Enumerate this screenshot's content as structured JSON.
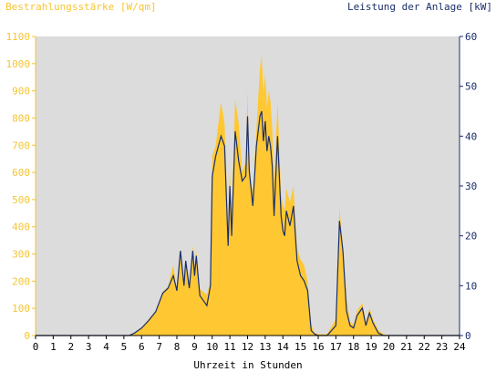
{
  "chart_data": {
    "type": "area",
    "title_left": "Bestrahlungsstärke [W/qm]",
    "title_right": "Leistung der Anlage [kW]",
    "xlabel": "Uhrzeit in Stunden",
    "x_ticks": [
      "0",
      "1",
      "2",
      "3",
      "4",
      "5",
      "6",
      "7",
      "8",
      "9",
      "10",
      "11",
      "12",
      "13",
      "14",
      "15",
      "16",
      "17",
      "18",
      "19",
      "20",
      "21",
      "22",
      "23",
      "24"
    ],
    "xlim": [
      0,
      24
    ],
    "y_left": {
      "ylim": [
        0,
        1100
      ],
      "ticks": [
        "0",
        "100",
        "200",
        "300",
        "400",
        "500",
        "600",
        "700",
        "800",
        "900",
        "1000",
        "1100"
      ]
    },
    "y_right": {
      "ylim": [
        0,
        60
      ],
      "ticks": [
        "0",
        "10",
        "20",
        "30",
        "40",
        "50",
        "60"
      ]
    },
    "grid": false,
    "colors": {
      "irradiance_fill": "#ffc832",
      "power_line": "#1a2e6b",
      "plot_bg": "#dcdcdc",
      "left_axis_text": "#f5c531",
      "right_axis_text": "#1a2e6b"
    },
    "series": [
      {
        "axis": "left",
        "style": "filled-area",
        "x": [
          0,
          5.3,
          5.6,
          6,
          6.4,
          6.8,
          7.2,
          7.5,
          7.8,
          8,
          8.2,
          8.4,
          8.5,
          8.7,
          8.9,
          9.0,
          9.1,
          9.3,
          9.5,
          9.7,
          9.9,
          10.0,
          10.2,
          10.5,
          10.7,
          10.9,
          11.0,
          11.1,
          11.3,
          11.5,
          11.7,
          11.9,
          12.0,
          12.1,
          12.3,
          12.5,
          12.7,
          12.8,
          12.9,
          13.0,
          13.1,
          13.2,
          13.3,
          13.4,
          13.5,
          13.7,
          13.9,
          14.0,
          14.1,
          14.2,
          14.4,
          14.6,
          14.8,
          15.0,
          15.2,
          15.4,
          15.6,
          15.8,
          16.0,
          16.5,
          17.0,
          17.2,
          17.4,
          17.6,
          17.8,
          18.0,
          18.2,
          18.5,
          18.7,
          18.9,
          19.1,
          19.4,
          19.7,
          20.0,
          24
        ],
        "values": [
          0,
          0,
          10,
          30,
          60,
          90,
          160,
          180,
          260,
          160,
          300,
          200,
          280,
          180,
          330,
          250,
          310,
          170,
          160,
          150,
          200,
          660,
          700,
          860,
          780,
          400,
          600,
          450,
          870,
          780,
          600,
          640,
          900,
          610,
          520,
          760,
          980,
          1030,
          900,
          960,
          840,
          900,
          860,
          760,
          560,
          860,
          520,
          480,
          460,
          540,
          490,
          550,
          320,
          280,
          260,
          200,
          40,
          10,
          5,
          5,
          60,
          470,
          330,
          140,
          50,
          40,
          90,
          120,
          50,
          100,
          60,
          20,
          5,
          0,
          0
        ]
      },
      {
        "axis": "right",
        "style": "line",
        "x": [
          0,
          5.3,
          5.6,
          6,
          6.4,
          6.8,
          7.2,
          7.5,
          7.8,
          8,
          8.2,
          8.4,
          8.5,
          8.7,
          8.9,
          9.0,
          9.1,
          9.3,
          9.5,
          9.7,
          9.9,
          10.0,
          10.2,
          10.5,
          10.7,
          10.9,
          11.0,
          11.1,
          11.3,
          11.5,
          11.7,
          11.9,
          12.0,
          12.1,
          12.3,
          12.5,
          12.7,
          12.8,
          12.9,
          13.0,
          13.1,
          13.2,
          13.3,
          13.4,
          13.5,
          13.7,
          13.9,
          14.0,
          14.1,
          14.2,
          14.4,
          14.6,
          14.8,
          15.0,
          15.2,
          15.4,
          15.6,
          15.8,
          16.0,
          16.5,
          17.0,
          17.2,
          17.4,
          17.6,
          17.8,
          18.0,
          18.2,
          18.5,
          18.7,
          18.9,
          19.1,
          19.4,
          19.7,
          20.0,
          24
        ],
        "values": [
          0,
          0,
          0.5,
          1.5,
          3,
          4.8,
          8.5,
          9.5,
          12,
          9,
          17,
          10,
          15,
          9.5,
          17,
          12,
          16,
          8,
          7,
          6,
          10,
          32,
          36,
          40,
          38,
          18,
          30,
          20,
          41,
          35,
          31,
          32,
          44,
          33,
          26,
          38,
          44,
          45,
          39,
          43,
          37,
          40,
          38,
          34,
          24,
          40,
          24,
          21,
          20,
          25,
          22,
          26,
          15,
          12,
          11,
          9,
          1,
          0.3,
          0,
          0,
          2,
          23,
          17,
          5,
          2,
          1.5,
          4,
          5.5,
          2,
          4.5,
          2.5,
          0.5,
          0,
          0,
          0
        ]
      }
    ]
  }
}
